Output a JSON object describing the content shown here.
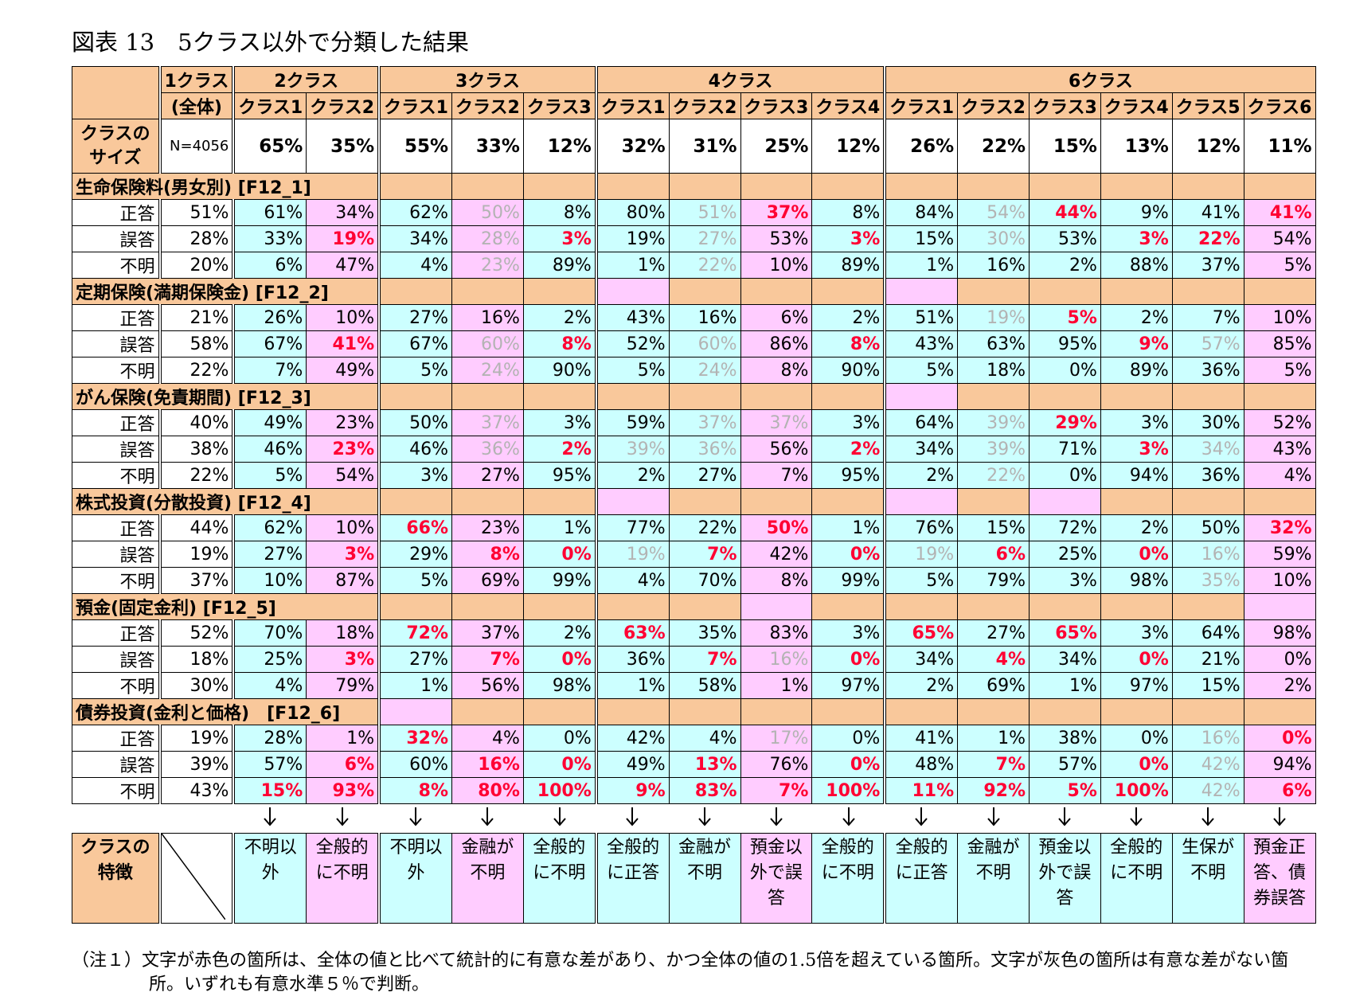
{
  "title": "図表 13　5クラス以外で分類した結果",
  "header": {
    "overall": {
      "group": "1クラス",
      "sub": "(全体)"
    },
    "groups": [
      {
        "label": "2クラス",
        "classes": [
          "クラス1",
          "クラス2"
        ]
      },
      {
        "label": "3クラス",
        "classes": [
          "クラス1",
          "クラス2",
          "クラス3"
        ]
      },
      {
        "label": "4クラス",
        "classes": [
          "クラス1",
          "クラス2",
          "クラス3",
          "クラス4"
        ]
      },
      {
        "label": "6クラス",
        "classes": [
          "クラス1",
          "クラス2",
          "クラス3",
          "クラス4",
          "クラス5",
          "クラス6"
        ]
      }
    ]
  },
  "size_row": {
    "label": [
      "クラスの",
      "サイズ"
    ],
    "overall": "N=4056",
    "values": [
      "65%",
      "35%",
      "55%",
      "33%",
      "12%",
      "32%",
      "31%",
      "25%",
      "12%",
      "26%",
      "22%",
      "15%",
      "13%",
      "12%",
      "11%"
    ]
  },
  "column_fills": [
    "cyan",
    "pink",
    "cyan",
    "pink",
    "cyan",
    "cyan",
    "cyan",
    "pink",
    "cyan",
    "cyan",
    "cyan",
    "cyan",
    "cyan",
    "cyan",
    "pink"
  ],
  "sections": [
    {
      "title": "生命保険料(男女別) [F12_1]",
      "fill": [
        "orange",
        "orange",
        "orange",
        "orange",
        "orange",
        "orange",
        "orange",
        "orange",
        "orange",
        "orange",
        "orange",
        "orange",
        "orange"
      ],
      "rows": [
        {
          "label": "正答",
          "overall": "51%",
          "values": [
            "61%",
            "34%",
            "62%",
            "50%",
            "8%",
            "80%",
            "51%",
            "37%",
            "8%",
            "84%",
            "54%",
            "44%",
            "9%",
            "41%",
            "41%"
          ],
          "font": [
            "black",
            "black",
            "black",
            "gray",
            "black",
            "black",
            "gray",
            "red",
            "black",
            "black",
            "gray",
            "red",
            "black",
            "black",
            "red"
          ]
        },
        {
          "label": "誤答",
          "overall": "28%",
          "values": [
            "33%",
            "19%",
            "34%",
            "28%",
            "3%",
            "19%",
            "27%",
            "53%",
            "3%",
            "15%",
            "30%",
            "53%",
            "3%",
            "22%",
            "54%"
          ],
          "font": [
            "black",
            "red",
            "black",
            "gray",
            "red",
            "black",
            "gray",
            "black",
            "red",
            "black",
            "gray",
            "black",
            "red",
            "red",
            "black"
          ]
        },
        {
          "label": "不明",
          "overall": "20%",
          "values": [
            "6%",
            "47%",
            "4%",
            "23%",
            "89%",
            "1%",
            "22%",
            "10%",
            "89%",
            "1%",
            "16%",
            "2%",
            "88%",
            "37%",
            "5%"
          ],
          "font": [
            "black",
            "black",
            "black",
            "gray",
            "black",
            "black",
            "gray",
            "black",
            "black",
            "black",
            "black",
            "black",
            "black",
            "black",
            "black"
          ]
        }
      ]
    },
    {
      "title": "定期保険(満期保険金) [F12_2]",
      "fill": [
        "orange",
        "orange",
        "orange",
        "pink",
        "orange",
        "orange",
        "orange",
        "pink",
        "orange",
        "orange",
        "orange",
        "orange",
        "orange"
      ],
      "rows": [
        {
          "label": "正答",
          "overall": "21%",
          "values": [
            "26%",
            "10%",
            "27%",
            "16%",
            "2%",
            "43%",
            "16%",
            "6%",
            "2%",
            "51%",
            "19%",
            "5%",
            "2%",
            "7%",
            "10%"
          ],
          "font": [
            "black",
            "black",
            "black",
            "black",
            "black",
            "black",
            "black",
            "black",
            "black",
            "black",
            "gray",
            "red",
            "black",
            "black",
            "black"
          ]
        },
        {
          "label": "誤答",
          "overall": "58%",
          "values": [
            "67%",
            "41%",
            "67%",
            "60%",
            "8%",
            "52%",
            "60%",
            "86%",
            "8%",
            "43%",
            "63%",
            "95%",
            "9%",
            "57%",
            "85%"
          ],
          "font": [
            "black",
            "red",
            "black",
            "gray",
            "red",
            "black",
            "gray",
            "black",
            "red",
            "black",
            "black",
            "black",
            "red",
            "gray",
            "black"
          ]
        },
        {
          "label": "不明",
          "overall": "22%",
          "values": [
            "7%",
            "49%",
            "5%",
            "24%",
            "90%",
            "5%",
            "24%",
            "8%",
            "90%",
            "5%",
            "18%",
            "0%",
            "89%",
            "36%",
            "5%"
          ],
          "font": [
            "black",
            "black",
            "black",
            "gray",
            "black",
            "black",
            "gray",
            "black",
            "black",
            "black",
            "black",
            "black",
            "black",
            "black",
            "black"
          ]
        }
      ]
    },
    {
      "title": "がん保険(免責期間) [F12_3]",
      "fill": [
        "orange",
        "orange",
        "orange",
        "orange",
        "orange",
        "orange",
        "orange",
        "pink",
        "orange",
        "orange",
        "orange",
        "orange",
        "orange"
      ],
      "rows": [
        {
          "label": "正答",
          "overall": "40%",
          "values": [
            "49%",
            "23%",
            "50%",
            "37%",
            "3%",
            "59%",
            "37%",
            "37%",
            "3%",
            "64%",
            "39%",
            "29%",
            "3%",
            "30%",
            "52%"
          ],
          "font": [
            "black",
            "black",
            "black",
            "gray",
            "black",
            "black",
            "gray",
            "gray",
            "black",
            "black",
            "gray",
            "red",
            "black",
            "black",
            "black"
          ]
        },
        {
          "label": "誤答",
          "overall": "38%",
          "values": [
            "46%",
            "23%",
            "46%",
            "36%",
            "2%",
            "39%",
            "36%",
            "56%",
            "2%",
            "34%",
            "39%",
            "71%",
            "3%",
            "34%",
            "43%"
          ],
          "font": [
            "black",
            "red",
            "black",
            "gray",
            "red",
            "gray",
            "gray",
            "black",
            "red",
            "black",
            "gray",
            "black",
            "red",
            "gray",
            "black"
          ]
        },
        {
          "label": "不明",
          "overall": "22%",
          "values": [
            "5%",
            "54%",
            "3%",
            "27%",
            "95%",
            "2%",
            "27%",
            "7%",
            "95%",
            "2%",
            "22%",
            "0%",
            "94%",
            "36%",
            "4%"
          ],
          "font": [
            "black",
            "black",
            "black",
            "black",
            "black",
            "black",
            "black",
            "black",
            "black",
            "black",
            "gray",
            "black",
            "black",
            "black",
            "black"
          ]
        }
      ]
    },
    {
      "title": "株式投資(分散投資) [F12_4]",
      "fill": [
        "orange",
        "orange",
        "orange",
        "pink",
        "orange",
        "orange",
        "orange",
        "pink",
        "orange",
        "pink",
        "orange",
        "orange",
        "orange"
      ],
      "rows": [
        {
          "label": "正答",
          "overall": "44%",
          "values": [
            "62%",
            "10%",
            "66%",
            "23%",
            "1%",
            "77%",
            "22%",
            "50%",
            "1%",
            "76%",
            "15%",
            "72%",
            "2%",
            "50%",
            "32%"
          ],
          "font": [
            "black",
            "black",
            "red",
            "black",
            "black",
            "black",
            "black",
            "red",
            "black",
            "black",
            "black",
            "black",
            "black",
            "black",
            "red"
          ]
        },
        {
          "label": "誤答",
          "overall": "19%",
          "values": [
            "27%",
            "3%",
            "29%",
            "8%",
            "0%",
            "19%",
            "7%",
            "42%",
            "0%",
            "19%",
            "6%",
            "25%",
            "0%",
            "16%",
            "59%"
          ],
          "font": [
            "black",
            "red",
            "black",
            "red",
            "red",
            "gray",
            "red",
            "black",
            "red",
            "gray",
            "red",
            "black",
            "red",
            "gray",
            "black"
          ]
        },
        {
          "label": "不明",
          "overall": "37%",
          "values": [
            "10%",
            "87%",
            "5%",
            "69%",
            "99%",
            "4%",
            "70%",
            "8%",
            "99%",
            "5%",
            "79%",
            "3%",
            "98%",
            "35%",
            "10%"
          ],
          "font": [
            "black",
            "black",
            "black",
            "black",
            "black",
            "black",
            "black",
            "black",
            "black",
            "black",
            "black",
            "black",
            "black",
            "gray",
            "black"
          ]
        }
      ]
    },
    {
      "title": "預金(固定金利) [F12_5]",
      "fill": [
        "orange",
        "orange",
        "orange",
        "orange",
        "orange",
        "pink",
        "orange",
        "orange",
        "orange",
        "orange",
        "orange",
        "orange",
        "pink"
      ],
      "rows": [
        {
          "label": "正答",
          "overall": "52%",
          "values": [
            "70%",
            "18%",
            "72%",
            "37%",
            "2%",
            "63%",
            "35%",
            "83%",
            "3%",
            "65%",
            "27%",
            "65%",
            "3%",
            "64%",
            "98%"
          ],
          "font": [
            "black",
            "black",
            "red",
            "black",
            "black",
            "red",
            "black",
            "black",
            "black",
            "red",
            "black",
            "red",
            "black",
            "black",
            "black"
          ]
        },
        {
          "label": "誤答",
          "overall": "18%",
          "values": [
            "25%",
            "3%",
            "27%",
            "7%",
            "0%",
            "36%",
            "7%",
            "16%",
            "0%",
            "34%",
            "4%",
            "34%",
            "0%",
            "21%",
            "0%"
          ],
          "font": [
            "black",
            "red",
            "black",
            "red",
            "red",
            "black",
            "red",
            "gray",
            "red",
            "black",
            "red",
            "black",
            "red",
            "black",
            "black"
          ]
        },
        {
          "label": "不明",
          "overall": "30%",
          "values": [
            "4%",
            "79%",
            "1%",
            "56%",
            "98%",
            "1%",
            "58%",
            "1%",
            "97%",
            "2%",
            "69%",
            "1%",
            "97%",
            "15%",
            "2%"
          ],
          "font": [
            "black",
            "black",
            "black",
            "black",
            "black",
            "black",
            "black",
            "black",
            "black",
            "black",
            "black",
            "black",
            "black",
            "black",
            "black"
          ]
        }
      ]
    },
    {
      "title": "債券投資(金利と価格)　[F12_6]",
      "fill": [
        "pink",
        "orange",
        "orange",
        "orange",
        "orange",
        "orange",
        "orange",
        "orange",
        "orange",
        "orange",
        "orange",
        "orange",
        "orange"
      ],
      "rows": [
        {
          "label": "正答",
          "overall": "19%",
          "values": [
            "28%",
            "1%",
            "32%",
            "4%",
            "0%",
            "42%",
            "4%",
            "17%",
            "0%",
            "41%",
            "1%",
            "38%",
            "0%",
            "16%",
            "0%"
          ],
          "font": [
            "black",
            "black",
            "red",
            "black",
            "black",
            "black",
            "black",
            "gray",
            "black",
            "black",
            "black",
            "black",
            "black",
            "gray",
            "red"
          ]
        },
        {
          "label": "誤答",
          "overall": "39%",
          "values": [
            "57%",
            "6%",
            "60%",
            "16%",
            "0%",
            "49%",
            "13%",
            "76%",
            "0%",
            "48%",
            "7%",
            "57%",
            "0%",
            "42%",
            "94%"
          ],
          "font": [
            "black",
            "red",
            "black",
            "red",
            "red",
            "black",
            "red",
            "black",
            "red",
            "black",
            "red",
            "black",
            "red",
            "gray",
            "black"
          ]
        },
        {
          "label": "不明",
          "overall": "43%",
          "values": [
            "15%",
            "93%",
            "8%",
            "80%",
            "100%",
            "9%",
            "83%",
            "7%",
            "100%",
            "11%",
            "92%",
            "5%",
            "100%",
            "42%",
            "6%"
          ],
          "font": [
            "red",
            "red",
            "red",
            "red",
            "red",
            "red",
            "red",
            "red",
            "red",
            "red",
            "red",
            "red",
            "red",
            "gray",
            "red"
          ]
        }
      ]
    }
  ],
  "features": {
    "label": [
      "クラスの",
      "特徴"
    ],
    "values": [
      "不明以外",
      "全般的に不明",
      "不明以外",
      "金融が不明",
      "全般的に不明",
      "全般的に正答",
      "金融が不明",
      "預金以外で誤答",
      "全般的に不明",
      "全般的に正答",
      "金融が不明",
      "預金以外で誤答",
      "全般的に不明",
      "生保が不明",
      "預金正答、債券誤答"
    ]
  },
  "note": "（注１）文字が赤色の箇所は、全体の値と比べて統計的に有意な差があり、かつ全体の値の1.5倍を超えている箇所。文字が灰色の箇所は有意な差がない箇所。いずれも有意水準５％で判断。"
}
